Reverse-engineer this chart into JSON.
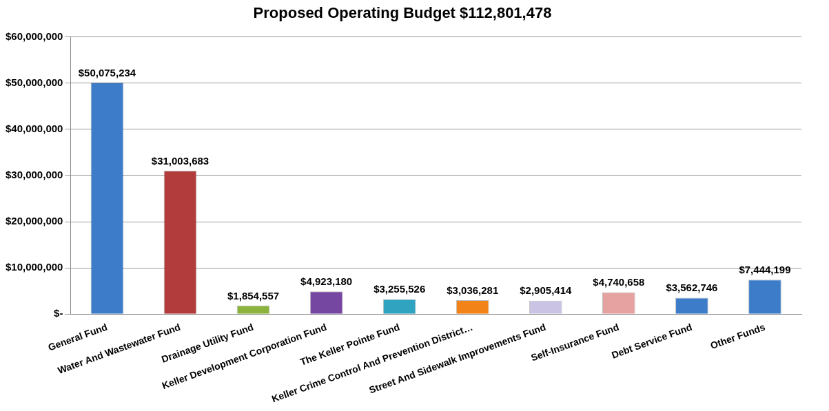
{
  "chart_data": {
    "type": "bar",
    "title": "Proposed Operating Budget $112,801,478",
    "categories": [
      "General Fund",
      "Water And Wastewater Fund",
      "Drainage Utility Fund",
      "Keller Development Corporation Fund",
      "The Keller Pointe Fund",
      "Keller Crime Control And Prevention District…",
      "Street And Sidewalk Improvements Fund",
      "Self-Insurance Fund",
      "Debt Service Fund",
      "Other Funds"
    ],
    "values": [
      50075234,
      31003683,
      1854557,
      4923180,
      3255526,
      3036281,
      2905414,
      4740658,
      3562746,
      7444199
    ],
    "colors": [
      "#3d7cc9",
      "#b23c3c",
      "#8db33f",
      "#7647a0",
      "#2fa3c0",
      "#f28318",
      "#cbc3e3",
      "#e6a1a1",
      "#3d7cc9",
      "#3d7cc9"
    ],
    "value_labels": [
      "$50,075,234",
      "$31,003,683",
      "$1,854,557",
      "$4,923,180",
      "$3,255,526",
      "$3,036,281",
      "$2,905,414",
      "$4,740,658",
      "$3,562,746",
      "$7,444,199"
    ],
    "ylim": [
      0,
      60000000
    ],
    "yticks": [
      {
        "value": 0,
        "label": "$-"
      },
      {
        "value": 10000000,
        "label": "$10,000,000"
      },
      {
        "value": 20000000,
        "label": "$20,000,000"
      },
      {
        "value": 30000000,
        "label": "$30,000,000"
      },
      {
        "value": 40000000,
        "label": "$40,000,000"
      },
      {
        "value": 50000000,
        "label": "$50,000,000"
      },
      {
        "value": 60000000,
        "label": "$60,000,000"
      }
    ],
    "grid": "y",
    "legend": false
  }
}
